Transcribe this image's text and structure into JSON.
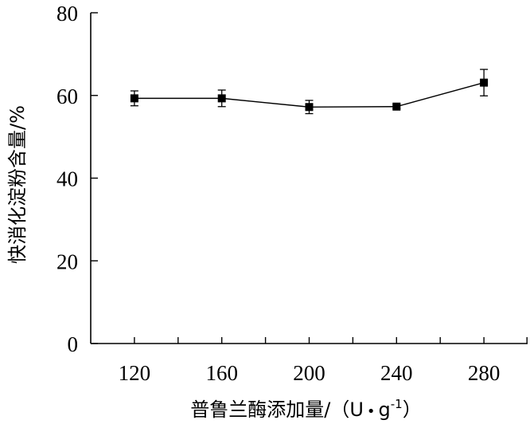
{
  "chart_data": {
    "type": "line",
    "x": [
      120,
      160,
      200,
      240,
      280
    ],
    "series": [
      {
        "values": [
          59.3,
          59.3,
          57.2,
          57.3,
          63.1
        ],
        "errors": [
          1.8,
          2.0,
          1.6,
          0.5,
          3.2
        ]
      }
    ],
    "xlabel_main": "普鲁兰酶添加量/（U",
    "xlabel_sep": "•",
    "xlabel_unit": "g",
    "xlabel_sup": "-1",
    "xlabel_close": "）",
    "ylabel": "快消化淀粉含量/%",
    "xlim": [
      100,
      300
    ],
    "ylim": [
      0,
      80
    ],
    "xticks": [
      120,
      160,
      200,
      240,
      280
    ],
    "yticks": [
      0,
      20,
      40,
      60,
      80
    ],
    "grid": false,
    "legend": "none",
    "color": "#000000"
  }
}
